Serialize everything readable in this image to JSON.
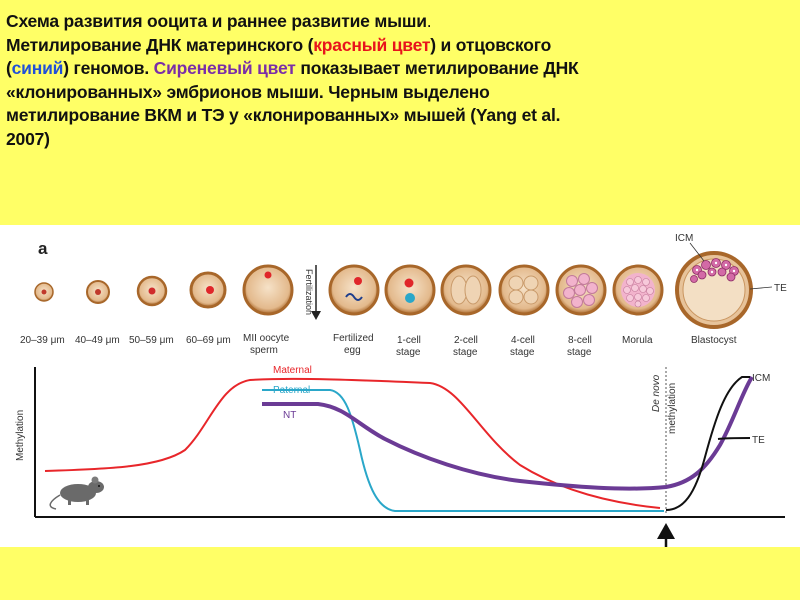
{
  "caption": {
    "line1": "Схема развития ооцита и раннее развитие мыши",
    "line1_end": ".",
    "line2_a": "Метилирование ДНК материнского (",
    "line2_red": "красный цвет",
    "line2_b": ") и отцовского",
    "line3_open": "(",
    "line3_blue": "синий",
    "line3_a": ") геномов. ",
    "line3_purple": "Сиреневый цвет",
    "line3_b": " показывает метилирование ДНК",
    "line4": "«клонированных» эмбрионов мыши. Черным выделено",
    "line5": "метилирование ВКМ и ТЭ у «клонированных» мышей (Yang et al.",
    "line6": "2007)"
  },
  "figure": {
    "panel_label": "a",
    "fertilization": "Fertilization",
    "stage_labels": {
      "s1": "20–39 μm",
      "s2": "40–49 μm",
      "s3": "50–59 μm",
      "s4": "60–69 μm",
      "s5a": "MII oocyte",
      "s5b": "sperm",
      "s6a": "Fertilized",
      "s6b": "egg",
      "s7a": "1-cell",
      "s7b": "stage",
      "s8a": "2-cell",
      "s8b": "stage",
      "s9a": "4-cell",
      "s9b": "stage",
      "s10a": "8-cell",
      "s10b": "stage",
      "s11": "Morula",
      "s12": "Blastocyst"
    },
    "icm_label": "ICM",
    "te_label": "TE",
    "y_axis_label": "Methylation",
    "curves": {
      "maternal": "Maternal",
      "paternal": "Paternal",
      "nt": "NT",
      "icm": "ICM",
      "te": "TE"
    },
    "de_novo_1": "De novo",
    "de_novo_2": "methylation",
    "colors": {
      "maternal": "#e8262a",
      "paternal": "#2aa7c9",
      "nt": "#6b3b95",
      "icm_te": "#111111",
      "cell_ring": "#a8672a",
      "cell_fill": "#e8c9a6",
      "blastomere": "#f2b3cc"
    }
  }
}
